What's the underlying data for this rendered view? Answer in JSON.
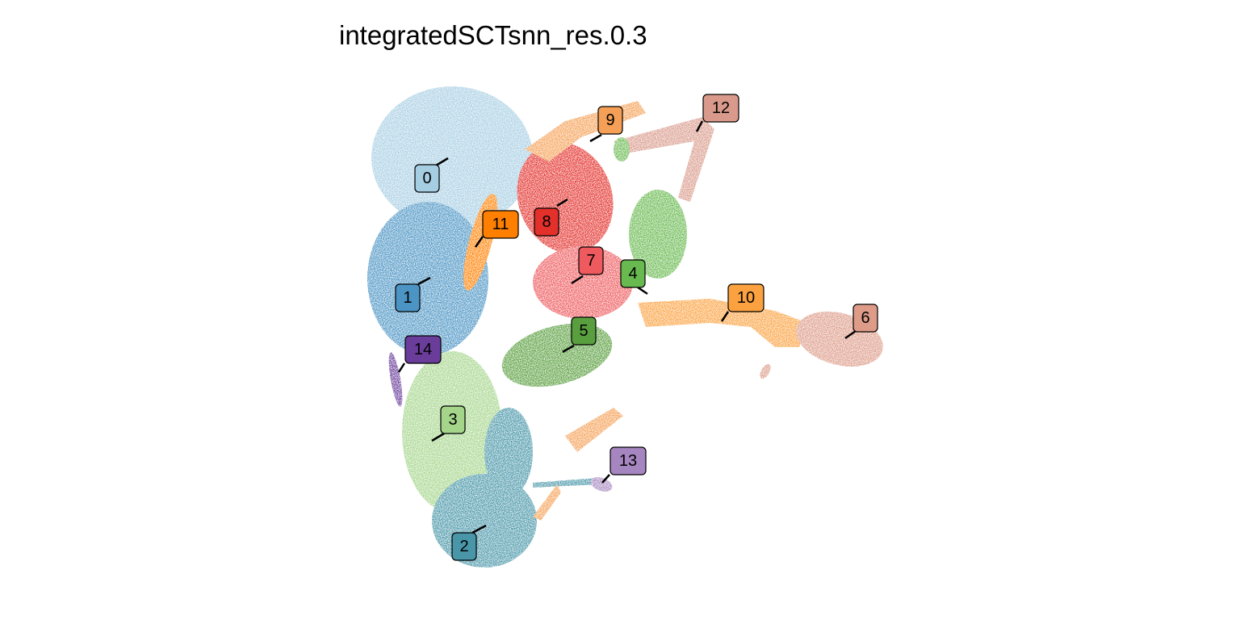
{
  "title": "integratedSCTsnn_res.0.3",
  "clusters": [
    {
      "label": "0",
      "color": "#a6cee3"
    },
    {
      "label": "1",
      "color": "#4b94c4"
    },
    {
      "label": "2",
      "color": "#4896a8"
    },
    {
      "label": "3",
      "color": "#a4d58a"
    },
    {
      "label": "4",
      "color": "#68b94f"
    },
    {
      "label": "5",
      "color": "#5a9f3f"
    },
    {
      "label": "6",
      "color": "#dd9b88"
    },
    {
      "label": "7",
      "color": "#ee5a5e"
    },
    {
      "label": "8",
      "color": "#e3302b"
    },
    {
      "label": "9",
      "color": "#f5a056"
    },
    {
      "label": "10",
      "color": "#fba13f"
    },
    {
      "label": "11",
      "color": "#ff8000"
    },
    {
      "label": "12",
      "color": "#d99a8b"
    },
    {
      "label": "13",
      "color": "#a686c0"
    },
    {
      "label": "14",
      "color": "#6a3d9a"
    }
  ]
}
